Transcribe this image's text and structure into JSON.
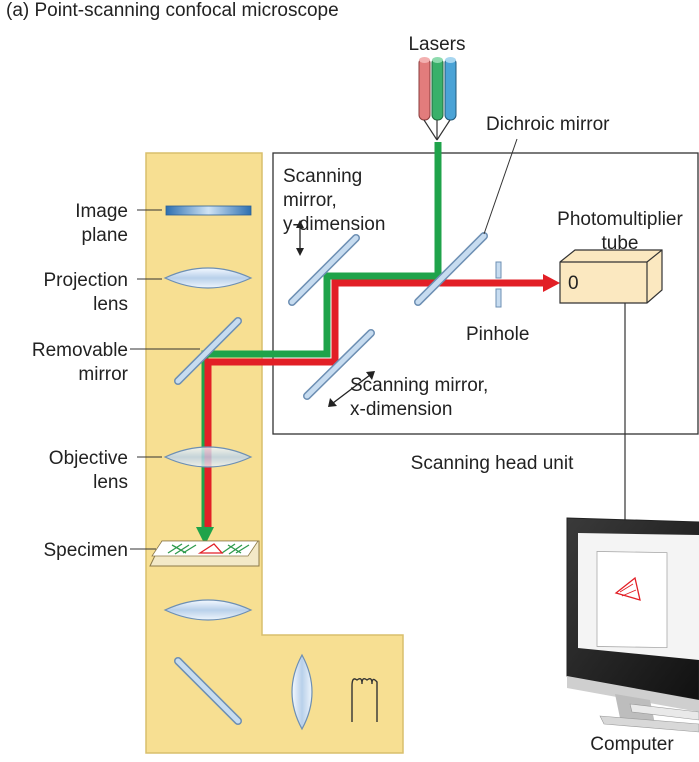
{
  "title": "(a) Point-scanning confocal microscope",
  "labels": {
    "lasers": "Lasers",
    "dichroic_mirror": "Dichroic mirror",
    "scanning_mirror_y": [
      "Scanning",
      "mirror,",
      "y-dimension"
    ],
    "photomultiplier_tube": [
      "Photomultiplier",
      "tube"
    ],
    "image_plane": [
      "Image",
      "plane"
    ],
    "projection_lens": [
      "Projection",
      "lens"
    ],
    "removable_mirror": [
      "Removable",
      "mirror"
    ],
    "pinhole": "Pinhole",
    "scanning_mirror_x": [
      "Scanning mirror,",
      "x-dimension"
    ],
    "objective_lens": [
      "Objective",
      "lens"
    ],
    "scanning_head_unit": "Scanning head unit",
    "specimen": "Specimen",
    "computer": "Computer",
    "photomultiplier_window": "0"
  },
  "colors": {
    "microscope_body": "#f7df92",
    "excitation_beam": "#1fa34a",
    "emission_beam": "#e21f26",
    "mirror": "#a9c6e2",
    "lens": "#cfe0f2",
    "photomultiplier_box": "#fbe8c0",
    "laser_red": "#e27c7c",
    "laser_green": "#39b06a",
    "laser_blue": "#4aa3d6"
  }
}
